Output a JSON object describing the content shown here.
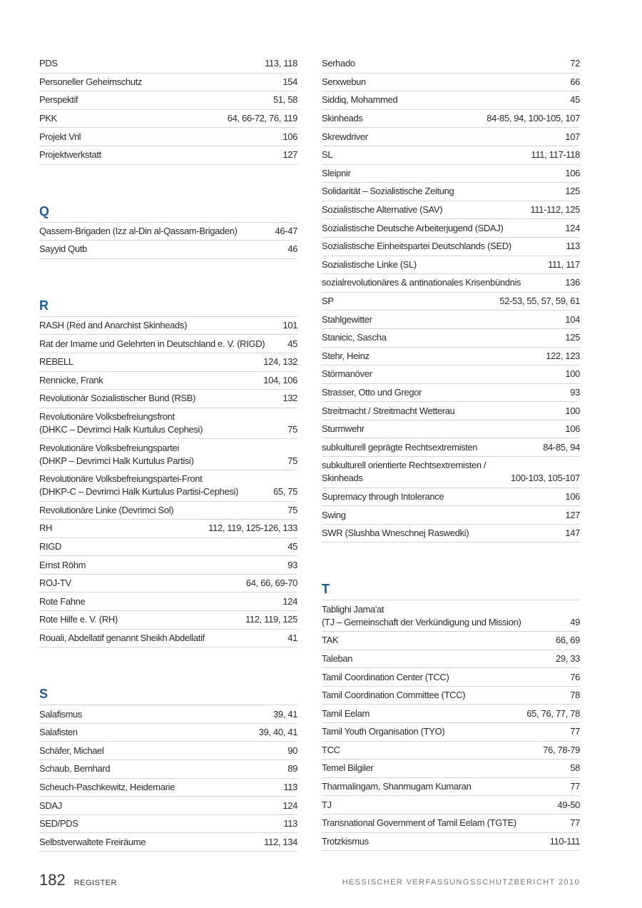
{
  "columns": [
    {
      "sections": [
        {
          "entries": [
            {
              "term": "PDS",
              "pages": "113, 118"
            },
            {
              "term": "Personeller Geheimschutz",
              "pages": "154"
            },
            {
              "term": "Perspektif",
              "pages": "51, 58"
            },
            {
              "term": "PKK",
              "pages": "64, 66-72, 76, 119"
            },
            {
              "term": "Projekt Vril",
              "pages": "106"
            },
            {
              "term": "Projektwerkstatt",
              "pages": "127"
            }
          ]
        },
        {
          "heading": "Q",
          "entries": [
            {
              "term": "Qassem-Brigaden (Izz al-Din al-Qassam-Brigaden)",
              "pages": "46-47"
            },
            {
              "term": "Sayyid Qutb",
              "pages": "46"
            }
          ]
        },
        {
          "heading": "R",
          "entries": [
            {
              "term": "RASH (Red and Anarchist Skinheads)",
              "pages": "101"
            },
            {
              "term": "Rat der Imame und Gelehrten in Deutschland e. V. (RIGD)",
              "pages": "45"
            },
            {
              "term": "REBELL",
              "pages": "124, 132"
            },
            {
              "term": "Rennicke, Frank",
              "pages": "104, 106"
            },
            {
              "term": "Revolutionär Sozialistischer Bund (RSB)",
              "pages": "132"
            },
            {
              "term": [
                "Revolutionäre Volksbefreiungsfront",
                "(DHKC – Devrimci Halk Kurtulus Cephesi)"
              ],
              "pages": "75"
            },
            {
              "term": [
                "Revolutionäre Volksbefreiungspartei",
                "(DHKP – Devrimci Halk Kurtulus Partisi)"
              ],
              "pages": "75"
            },
            {
              "term": [
                "Revolutionäre Volksbefreiungspartei-Front",
                "(DHKP-C – Devrimci Halk Kurtulus Partisi-Cephesi)"
              ],
              "pages": "65, 75"
            },
            {
              "term": "Revolutionäre Linke (Devrimci Sol)",
              "pages": "75"
            },
            {
              "term": "RH",
              "pages": "112, 119, 125-126, 133"
            },
            {
              "term": "RIGD",
              "pages": "45"
            },
            {
              "term": "Ernst Röhm",
              "pages": "93"
            },
            {
              "term": "ROJ-TV",
              "pages": "64, 66, 69-70"
            },
            {
              "term": "Rote Fahne",
              "pages": "124"
            },
            {
              "term": "Rote Hilfe e. V. (RH)",
              "pages": "112, 119, 125"
            },
            {
              "term": "Rouali, Abdellatif genannt Sheikh Abdellatif",
              "pages": "41"
            }
          ]
        },
        {
          "heading": "S",
          "entries": [
            {
              "term": "Salafismus",
              "pages": "39, 41"
            },
            {
              "term": "Salafisten",
              "pages": "39, 40, 41"
            },
            {
              "term": "Schäfer, Michael",
              "pages": "90"
            },
            {
              "term": "Schaub, Bernhard",
              "pages": "89"
            },
            {
              "term": "Scheuch-Paschkewitz, Heidemarie",
              "pages": "113"
            },
            {
              "term": "SDAJ",
              "pages": "124"
            },
            {
              "term": "SED/PDS",
              "pages": "113"
            },
            {
              "term": "Selbstverwaltete Freiräume",
              "pages": "112, 134"
            }
          ]
        }
      ]
    },
    {
      "sections": [
        {
          "entries": [
            {
              "term": "Serhado",
              "pages": "72"
            },
            {
              "term": "Serxwebun",
              "pages": "66"
            },
            {
              "term": "Siddiq, Mohammed",
              "pages": "45"
            },
            {
              "term": "Skinheads",
              "pages": "84-85, 94, 100-105, 107"
            },
            {
              "term": "Skrewdriver",
              "pages": "107"
            },
            {
              "term": "SL",
              "pages": "111, 117-118"
            },
            {
              "term": "Sleipnir",
              "pages": "106"
            },
            {
              "term": "Solidarität – Sozialistische Zeitung",
              "pages": "125"
            },
            {
              "term": "Sozialistische Alternative (SAV)",
              "pages": "111-112, 125"
            },
            {
              "term": "Sozialistische Deutsche  Arbeiterjugend (SDAJ)",
              "pages": "124"
            },
            {
              "term": "Sozialistische Einheitspartei Deutschlands (SED)",
              "pages": "113"
            },
            {
              "term": "Sozialistische Linke (SL)",
              "pages": "111, 117"
            },
            {
              "term": "sozialrevolutionäres & antinationales Krisenbündnis",
              "pages": "136"
            },
            {
              "term": "SP",
              "pages": "52-53, 55, 57, 59, 61"
            },
            {
              "term": "Stahlgewitter",
              "pages": "104"
            },
            {
              "term": "Stanicic, Sascha",
              "pages": "125"
            },
            {
              "term": "Stehr, Heinz",
              "pages": "122, 123"
            },
            {
              "term": "Störmanöver",
              "pages": "100"
            },
            {
              "term": "Strasser, Otto und Gregor",
              "pages": "93"
            },
            {
              "term": "Streitmacht / Streitmacht Wetterau",
              "pages": "100"
            },
            {
              "term": "Sturmwehr",
              "pages": "106"
            },
            {
              "term": "subkulturell geprägte Rechtsextremisten",
              "pages": "84-85, 94"
            },
            {
              "term": [
                "subkulturell orientierte Rechtsextremisten /",
                "Skinheads"
              ],
              "pages": "100-103, 105-107"
            },
            {
              "term": "Supremacy through Intolerance",
              "pages": "106"
            },
            {
              "term": "Swing",
              "pages": "127"
            },
            {
              "term": "SWR (Slushba Wneschnej Raswedki)",
              "pages": "147"
            }
          ]
        },
        {
          "heading": "T",
          "entries": [
            {
              "term": [
                "Tablighi Jama'at",
                "(TJ – Gemeinschaft der Verkündigung und Mission)"
              ],
              "pages": "49"
            },
            {
              "term": "TAK",
              "pages": "66, 69"
            },
            {
              "term": "Taleban",
              "pages": "29, 33"
            },
            {
              "term": "Tamil Coordination Center (TCC)",
              "pages": "76"
            },
            {
              "term": "Tamil Coordination Committee (TCC)",
              "pages": "78"
            },
            {
              "term": "Tamil Eelam",
              "pages": "65, 76, 77, 78"
            },
            {
              "term": "Tamil Youth Organisation (TYO)",
              "pages": "77"
            },
            {
              "term": "TCC",
              "pages": "76, 78-79"
            },
            {
              "term": "Temel Bilgiler",
              "pages": "58"
            },
            {
              "term": "Tharmalingam, Shanmugam Kumaran",
              "pages": "77"
            },
            {
              "term": "TJ",
              "pages": "49-50"
            },
            {
              "term": "Transnational Government of Tamil Eelam (TGTE)",
              "pages": "77"
            },
            {
              "term": "Trotzkismus",
              "pages": "110-111"
            }
          ]
        }
      ]
    }
  ],
  "footer": {
    "page_number": "182",
    "section": "REGISTER",
    "publication": "HESSISCHER VERFASSUNGSSCHUTZBERICHT 2010"
  }
}
